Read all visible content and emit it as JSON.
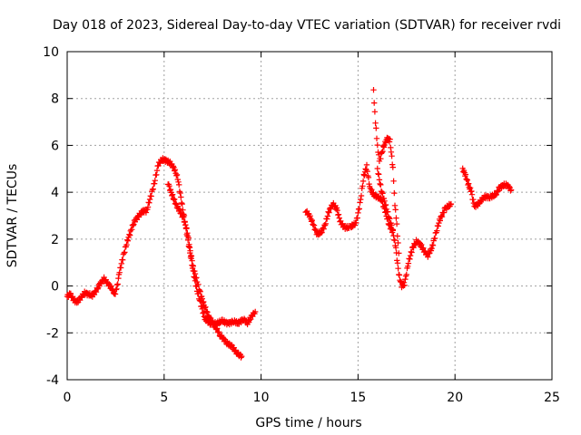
{
  "chart_data": {
    "type": "scatter",
    "title": "Day 018 of 2023, Sidereal Day-to-day VTEC variation (SDTVAR) for receiver rvdi",
    "xlabel": "GPS time / hours",
    "ylabel": "SDTVAR / TECUs",
    "xlim": [
      0,
      25
    ],
    "ylim": [
      -4,
      10
    ],
    "xticks": [
      0,
      5,
      10,
      15,
      20,
      25
    ],
    "yticks": [
      -4,
      -2,
      0,
      2,
      4,
      6,
      8,
      10
    ],
    "grid": true,
    "marker": "+",
    "color": "#ff0000",
    "series": [
      {
        "name": "SDTVAR",
        "segments": [
          [
            [
              0.0,
              -0.45
            ],
            [
              0.15,
              -0.35
            ],
            [
              0.35,
              -0.6
            ],
            [
              0.5,
              -0.7
            ],
            [
              0.7,
              -0.5
            ],
            [
              0.9,
              -0.3
            ],
            [
              1.1,
              -0.35
            ],
            [
              1.3,
              -0.4
            ],
            [
              1.5,
              -0.2
            ],
            [
              1.7,
              0.1
            ],
            [
              1.9,
              0.3
            ],
            [
              2.1,
              0.1
            ],
            [
              2.3,
              -0.1
            ],
            [
              2.45,
              -0.35
            ],
            [
              2.55,
              -0.15
            ],
            [
              2.7,
              0.6
            ],
            [
              2.9,
              1.3
            ],
            [
              3.1,
              1.9
            ],
            [
              3.3,
              2.4
            ],
            [
              3.5,
              2.8
            ],
            [
              3.7,
              3.0
            ],
            [
              3.9,
              3.2
            ],
            [
              4.1,
              3.2
            ],
            [
              4.3,
              3.8
            ],
            [
              4.5,
              4.4
            ],
            [
              4.7,
              5.2
            ],
            [
              4.9,
              5.4
            ],
            [
              5.1,
              5.35
            ],
            [
              5.3,
              5.25
            ],
            [
              5.5,
              5.05
            ],
            [
              5.7,
              4.6
            ],
            [
              5.9,
              3.6
            ],
            [
              6.1,
              2.6
            ],
            [
              6.3,
              1.6
            ],
            [
              6.5,
              0.6
            ],
            [
              6.7,
              -0.2
            ],
            [
              6.9,
              -0.8
            ],
            [
              7.1,
              -1.4
            ],
            [
              7.4,
              -1.6
            ],
            [
              7.7,
              -1.6
            ],
            [
              8.0,
              -1.5
            ],
            [
              8.3,
              -1.6
            ],
            [
              8.6,
              -1.5
            ],
            [
              8.8,
              -1.6
            ],
            [
              9.1,
              -1.4
            ],
            [
              9.3,
              -1.6
            ],
            [
              9.5,
              -1.3
            ],
            [
              9.7,
              -1.1
            ]
          ],
          [
            [
              5.2,
              4.4
            ],
            [
              5.4,
              3.9
            ],
            [
              5.6,
              3.5
            ],
            [
              5.8,
              3.2
            ],
            [
              6.0,
              2.9
            ],
            [
              6.2,
              2.3
            ],
            [
              6.35,
              1.5
            ],
            [
              6.5,
              0.8
            ],
            [
              6.7,
              0.2
            ],
            [
              6.9,
              -0.4
            ],
            [
              7.1,
              -0.9
            ],
            [
              7.3,
              -1.3
            ],
            [
              7.6,
              -1.7
            ],
            [
              7.9,
              -2.1
            ],
            [
              8.2,
              -2.4
            ],
            [
              8.5,
              -2.6
            ],
            [
              8.8,
              -2.9
            ],
            [
              9.0,
              -3.0
            ]
          ],
          [
            [
              12.3,
              3.2
            ],
            [
              12.5,
              3.0
            ],
            [
              12.7,
              2.6
            ],
            [
              12.9,
              2.2
            ],
            [
              13.1,
              2.3
            ],
            [
              13.3,
              2.6
            ],
            [
              13.5,
              3.2
            ],
            [
              13.7,
              3.5
            ],
            [
              13.9,
              3.3
            ],
            [
              14.1,
              2.7
            ],
            [
              14.3,
              2.5
            ],
            [
              14.6,
              2.5
            ],
            [
              14.9,
              2.7
            ],
            [
              15.1,
              3.5
            ],
            [
              15.3,
              4.7
            ],
            [
              15.45,
              5.1
            ],
            [
              15.6,
              4.2
            ],
            [
              15.8,
              3.9
            ],
            [
              16.0,
              3.8
            ],
            [
              16.2,
              3.7
            ],
            [
              16.4,
              3.2
            ],
            [
              16.6,
              2.6
            ],
            [
              16.8,
              2.3
            ],
            [
              16.95,
              1.6
            ],
            [
              17.1,
              0.5
            ],
            [
              17.25,
              0.0
            ],
            [
              17.4,
              0.1
            ],
            [
              17.6,
              1.0
            ],
            [
              17.8,
              1.6
            ],
            [
              18.0,
              1.9
            ],
            [
              18.2,
              1.8
            ],
            [
              18.4,
              1.5
            ],
            [
              18.6,
              1.3
            ],
            [
              18.8,
              1.6
            ],
            [
              19.0,
              2.2
            ],
            [
              19.2,
              2.8
            ],
            [
              19.5,
              3.3
            ],
            [
              19.8,
              3.5
            ]
          ],
          [
            [
              15.8,
              8.3
            ],
            [
              15.9,
              7.0
            ],
            [
              16.0,
              6.0
            ],
            [
              16.1,
              5.3
            ],
            [
              16.3,
              5.9
            ],
            [
              16.5,
              6.3
            ],
            [
              16.65,
              6.2
            ],
            [
              16.8,
              5.0
            ],
            [
              16.9,
              3.5
            ],
            [
              17.0,
              2.6
            ],
            [
              17.1,
              1.4
            ]
          ],
          [
            [
              16.0,
              5.0
            ],
            [
              16.2,
              4.1
            ],
            [
              16.4,
              3.5
            ],
            [
              16.6,
              2.9
            ],
            [
              16.8,
              2.4
            ]
          ],
          [
            [
              20.4,
              5.0
            ],
            [
              20.55,
              4.7
            ],
            [
              20.7,
              4.3
            ],
            [
              20.85,
              4.0
            ],
            [
              21.0,
              3.4
            ],
            [
              21.2,
              3.5
            ],
            [
              21.5,
              3.8
            ],
            [
              21.8,
              3.8
            ],
            [
              22.1,
              3.9
            ],
            [
              22.3,
              4.2
            ],
            [
              22.5,
              4.3
            ],
            [
              22.7,
              4.3
            ],
            [
              22.9,
              4.1
            ]
          ]
        ]
      }
    ]
  }
}
